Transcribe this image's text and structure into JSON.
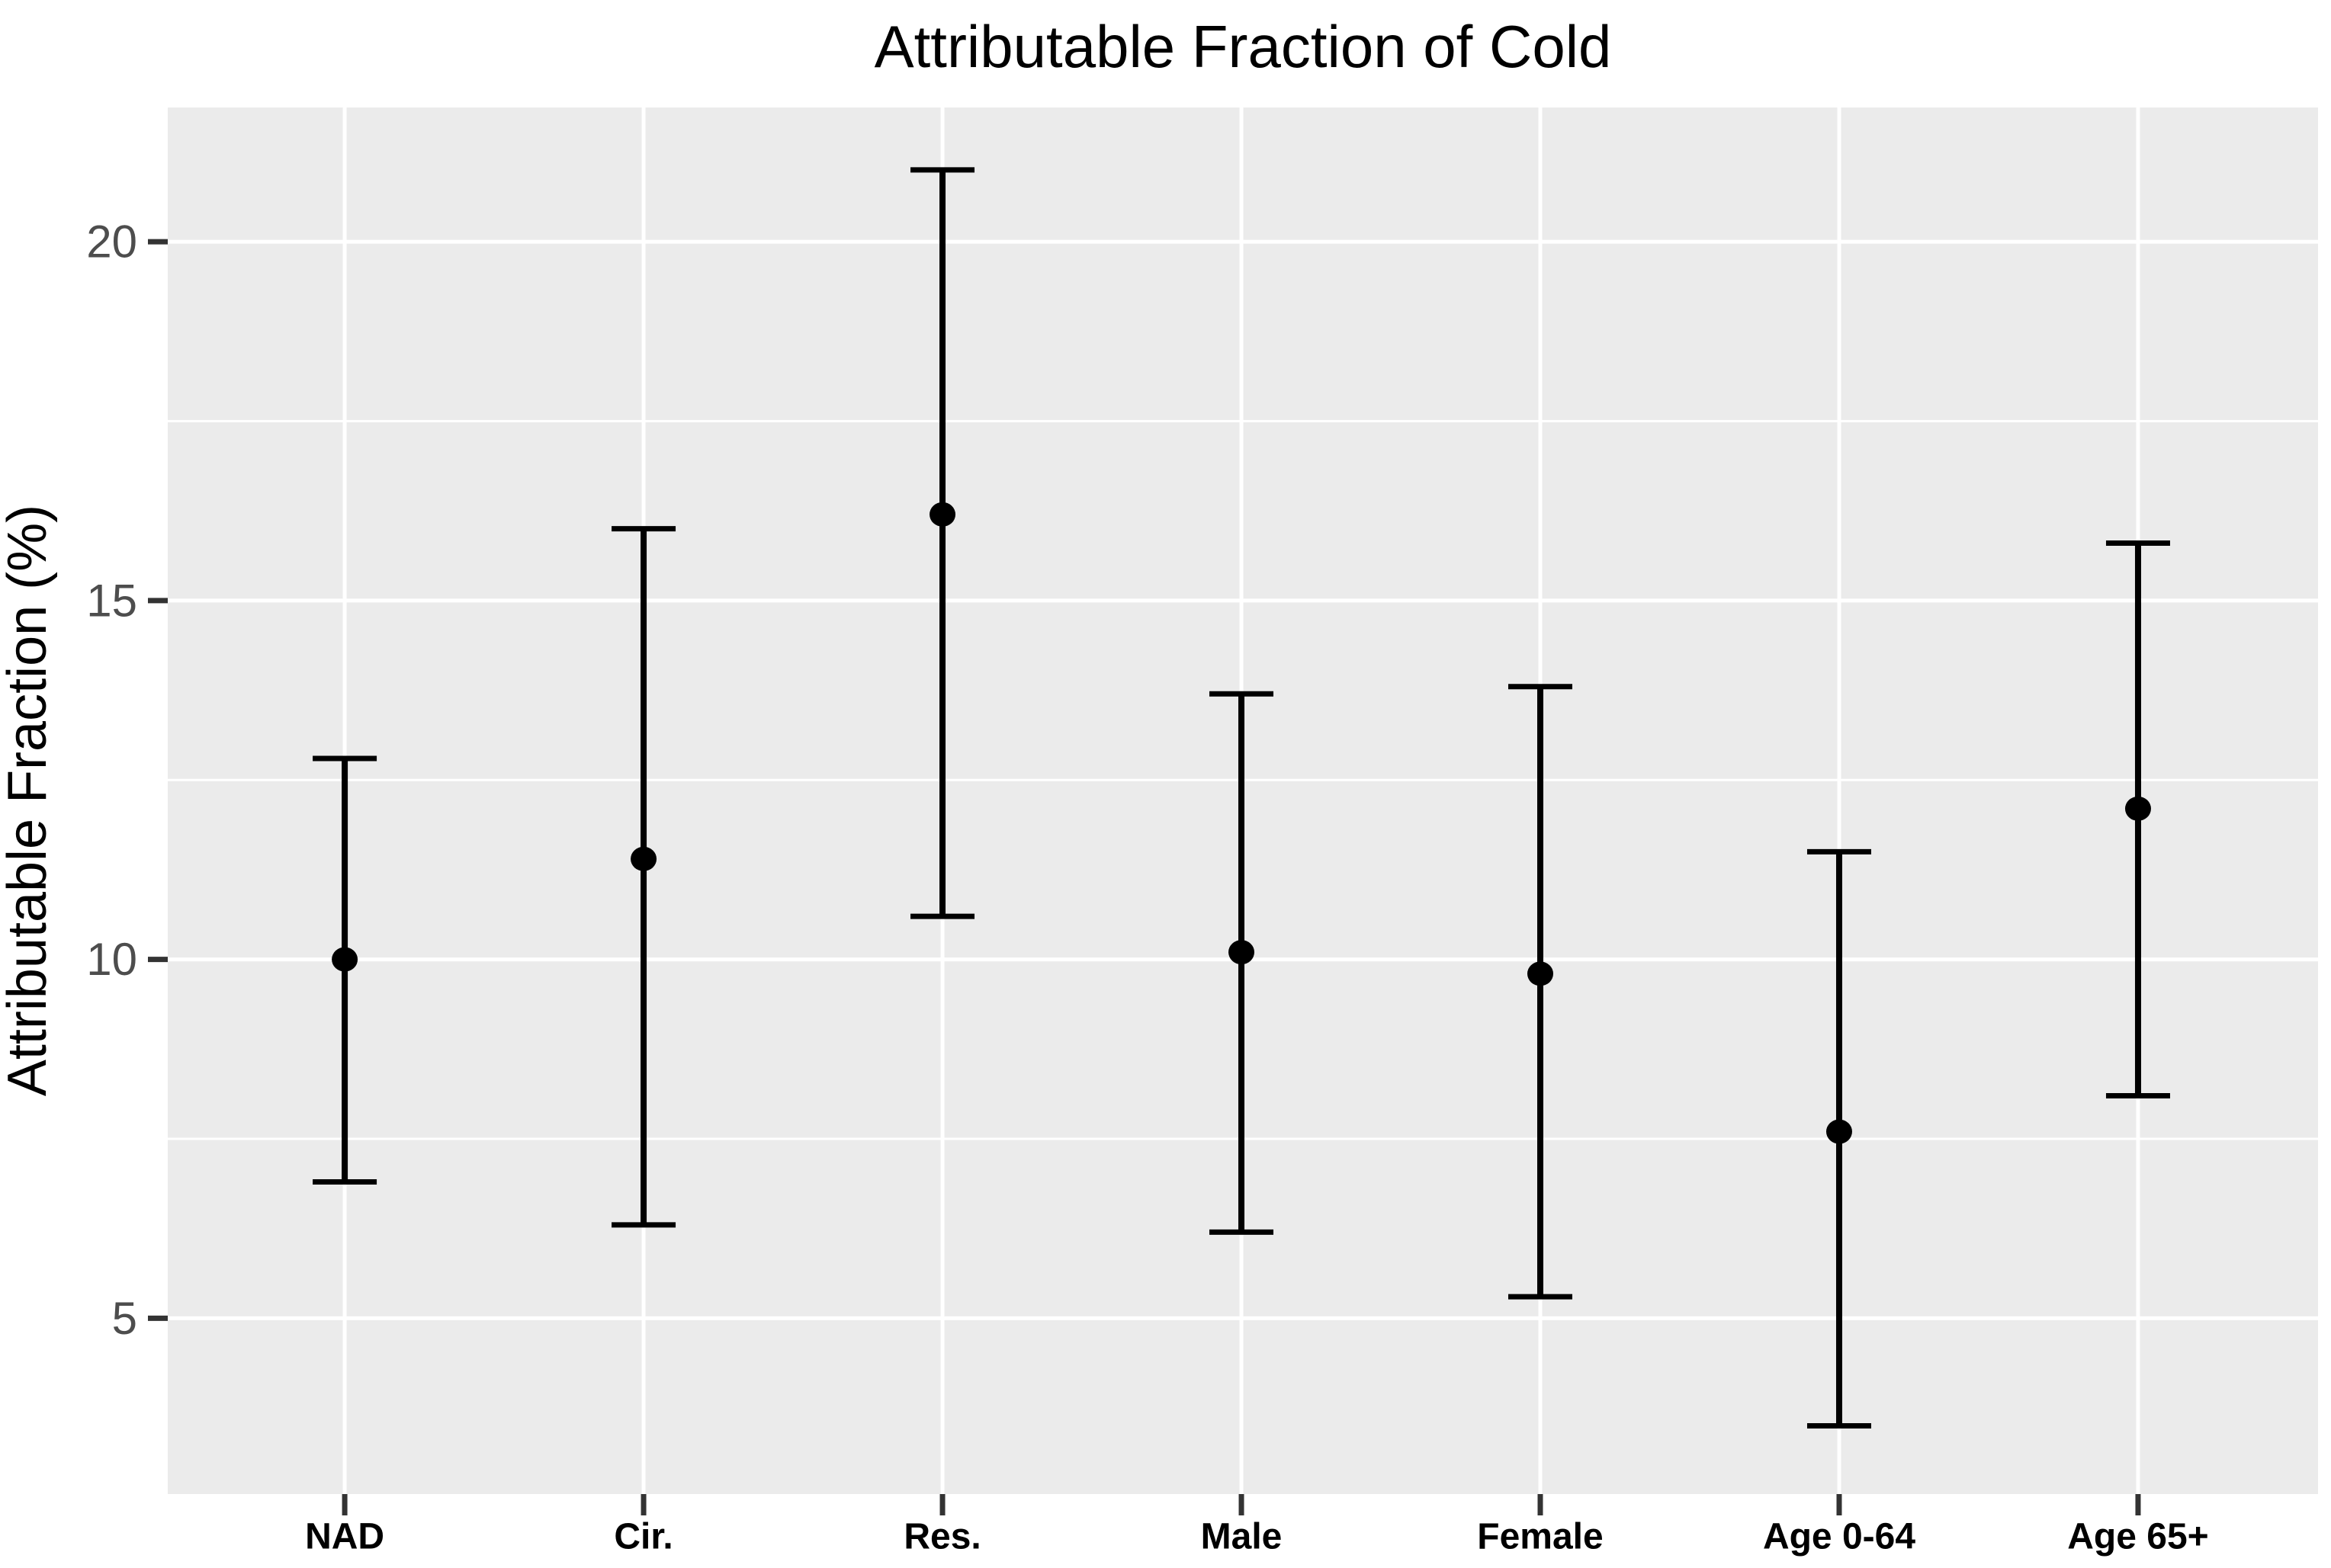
{
  "title": "Attributable Fraction of Cold",
  "y_axis": {
    "label": "Attributable Fraction (%)",
    "tick_labels": [
      "20",
      "15",
      "10",
      "5"
    ],
    "major_ticks": [
      20,
      15,
      10,
      5
    ],
    "minor_gridlines": [
      17.5,
      12.5,
      7.5
    ]
  },
  "x_axis": {
    "categories": [
      "NAD",
      "Cir.",
      "Res.",
      "Male",
      "Female",
      "Age 0-64",
      "Age 65+"
    ]
  },
  "chart_data": {
    "type": "scatter",
    "subtype": "point-with-error-bars",
    "title": "Attributable Fraction of Cold",
    "xlabel": "",
    "ylabel": "Attributable Fraction (%)",
    "categories": [
      "NAD",
      "Cir.",
      "Res.",
      "Male",
      "Female",
      "Age 0-64",
      "Age 65+"
    ],
    "series": [
      {
        "name": "Attributable Fraction (%)",
        "values": [
          10.0,
          11.4,
          16.2,
          10.1,
          9.8,
          7.6,
          12.1
        ],
        "ci_low": [
          6.9,
          6.3,
          10.6,
          6.2,
          5.3,
          3.5,
          8.1
        ],
        "ci_high": [
          12.8,
          16.0,
          21.0,
          13.7,
          13.8,
          11.5,
          15.8
        ]
      }
    ],
    "ylim": [
      2.55,
      21.87
    ],
    "y_major_step": 5,
    "y_minor_step": 2.5,
    "grid": "white major+minor horizontal lines and white vertical line per category on grey panel",
    "legend_position": "none"
  },
  "colors": {
    "background": "#ffffff",
    "panel": "#ebebeb",
    "gridline": "#ffffff",
    "data": "#000000",
    "tick_label": "#4d4d4d",
    "axis_tick": "#333333",
    "title_text": "#000000"
  }
}
